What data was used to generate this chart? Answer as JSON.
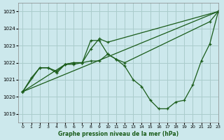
{
  "title": "Graphe pression niveau de la mer (hPa)",
  "bg_color": "#cce8ec",
  "grid_color": "#aacccc",
  "line_color": "#1a5c1a",
  "xlim": [
    -0.5,
    23
  ],
  "ylim": [
    1018.5,
    1025.5
  ],
  "yticks": [
    1019,
    1020,
    1021,
    1022,
    1023,
    1024,
    1025
  ],
  "xticks": [
    0,
    1,
    2,
    3,
    4,
    5,
    6,
    7,
    8,
    9,
    10,
    11,
    12,
    13,
    14,
    15,
    16,
    17,
    18,
    19,
    20,
    21,
    22,
    23
  ],
  "line1_dip": {
    "x": [
      0,
      1,
      2,
      3,
      4,
      5,
      6,
      7,
      8,
      9,
      10,
      11,
      12,
      13,
      14,
      15,
      16,
      17,
      18,
      19,
      20,
      21,
      22,
      23
    ],
    "y": [
      1020.3,
      1021.1,
      1021.7,
      1021.7,
      1021.4,
      1021.9,
      1021.9,
      1022.0,
      1022.1,
      1022.1,
      1022.5,
      1022.2,
      1021.8,
      1021.0,
      1020.6,
      1019.8,
      1019.3,
      1019.3,
      1019.7,
      1019.8,
      1020.7,
      1022.1,
      1023.1,
      1025.0
    ]
  },
  "line2_peak": {
    "x": [
      0,
      2,
      3,
      4,
      5,
      6,
      7,
      8,
      9,
      10,
      11,
      12,
      22,
      23
    ],
    "y": [
      1020.3,
      1021.7,
      1021.7,
      1021.5,
      1021.9,
      1022.0,
      1022.0,
      1023.3,
      1023.3,
      1022.5,
      1022.2,
      1022.0,
      1024.4,
      1025.0
    ]
  },
  "line3_moderate": {
    "x": [
      0,
      5,
      6,
      7,
      8,
      9,
      10,
      23
    ],
    "y": [
      1020.3,
      1021.9,
      1022.0,
      1022.0,
      1022.8,
      1023.4,
      1023.2,
      1025.0
    ]
  },
  "line4_straight": {
    "x": [
      0,
      23
    ],
    "y": [
      1020.3,
      1025.0
    ]
  }
}
